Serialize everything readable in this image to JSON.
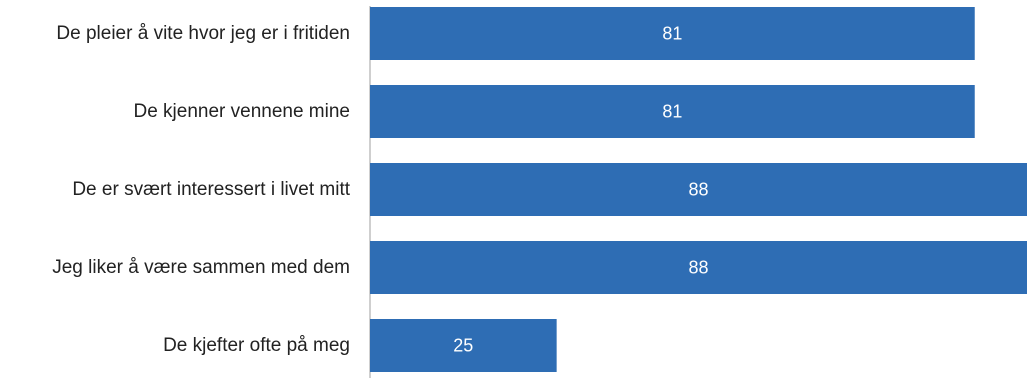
{
  "chart_data": {
    "type": "bar",
    "orientation": "horizontal",
    "categories": [
      "De pleier å vite hvor jeg er i fritiden",
      "De kjenner vennene mine",
      "De er svært interessert i livet mitt",
      "Jeg liker å være sammen med dem",
      "De kjefter ofte på meg"
    ],
    "values": [
      81,
      81,
      88,
      88,
      25
    ],
    "data_labels": [
      "81",
      "81",
      "88",
      "88",
      "25"
    ],
    "xlim": [
      0,
      88
    ],
    "grid": false,
    "legend": "none",
    "colors": {
      "bar": "#2E6DB4",
      "axis": "#BFBFBF",
      "label_text": "#222222",
      "value_text": "#FFFFFF"
    }
  }
}
